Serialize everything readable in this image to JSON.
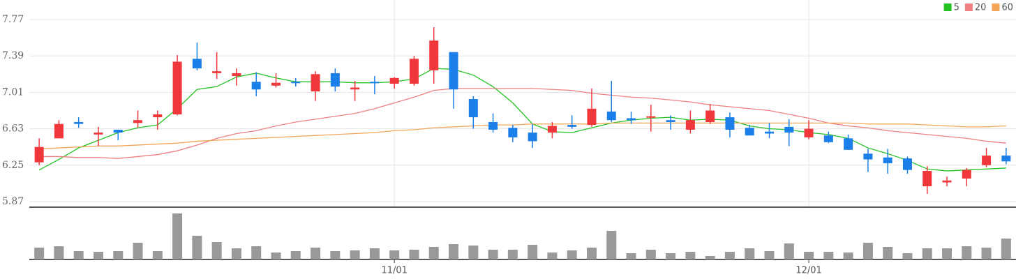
{
  "chart_data": {
    "type": "candlestick",
    "categories": [
      null,
      null,
      null,
      null,
      null,
      null,
      null,
      null,
      null,
      null,
      null,
      null,
      null,
      null,
      null,
      null,
      null,
      null,
      "11/01",
      null,
      null,
      null,
      null,
      null,
      null,
      null,
      null,
      null,
      null,
      null,
      null,
      null,
      null,
      null,
      null,
      null,
      null,
      null,
      null,
      "12/01",
      null,
      null,
      null,
      null,
      null,
      null,
      null,
      null,
      null,
      null
    ],
    "open": [
      6.28,
      6.53,
      6.7,
      6.57,
      6.62,
      6.69,
      6.75,
      6.78,
      7.36,
      7.21,
      7.18,
      7.12,
      7.08,
      7.12,
      7.02,
      7.21,
      7.04,
      7.12,
      7.1,
      7.1,
      7.24,
      7.43,
      6.94,
      6.7,
      6.64,
      6.59,
      6.59,
      6.67,
      6.67,
      6.81,
      6.74,
      6.75,
      6.72,
      6.62,
      6.7,
      6.75,
      6.64,
      6.6,
      6.65,
      6.54,
      6.56,
      6.53,
      6.37,
      6.33,
      6.32,
      6.03,
      6.07,
      6.11,
      6.25,
      6.35
    ],
    "high": [
      6.53,
      6.72,
      6.75,
      6.65,
      6.62,
      6.82,
      6.82,
      7.4,
      7.53,
      7.43,
      7.26,
      7.22,
      7.21,
      7.16,
      7.23,
      7.26,
      7.13,
      7.18,
      7.17,
      7.39,
      7.69,
      7.43,
      6.97,
      6.79,
      6.67,
      6.68,
      6.7,
      6.77,
      7.05,
      7.13,
      6.81,
      6.88,
      6.77,
      6.82,
      6.89,
      6.8,
      6.67,
      6.69,
      6.73,
      6.72,
      6.6,
      6.57,
      6.42,
      6.42,
      6.34,
      6.24,
      6.13,
      6.22,
      6.43,
      6.43
    ],
    "low": [
      6.25,
      6.53,
      6.64,
      6.45,
      6.51,
      6.64,
      6.62,
      6.77,
      7.24,
      7.15,
      7.08,
      6.97,
      7.06,
      7.07,
      6.92,
      7.02,
      6.92,
      6.99,
      7.05,
      7.08,
      7.1,
      6.84,
      6.63,
      6.59,
      6.49,
      6.43,
      6.53,
      6.63,
      6.65,
      6.7,
      6.68,
      6.6,
      6.62,
      6.58,
      6.68,
      6.54,
      6.56,
      6.53,
      6.45,
      6.52,
      6.48,
      6.41,
      6.18,
      6.16,
      6.16,
      5.95,
      6.03,
      6.03,
      6.23,
      6.26
    ],
    "close": [
      6.44,
      6.68,
      6.68,
      6.59,
      6.59,
      6.72,
      6.78,
      7.33,
      7.26,
      7.23,
      7.21,
      7.04,
      7.11,
      7.11,
      7.2,
      7.07,
      7.06,
      7.11,
      7.16,
      7.36,
      7.55,
      7.04,
      6.75,
      6.62,
      6.54,
      6.5,
      6.66,
      6.65,
      6.84,
      6.72,
      6.72,
      6.76,
      6.7,
      6.72,
      6.82,
      6.62,
      6.56,
      6.58,
      6.59,
      6.63,
      6.49,
      6.41,
      6.31,
      6.27,
      6.2,
      6.19,
      6.09,
      6.2,
      6.35,
      6.29
    ],
    "up_color": "#f0373c",
    "down_color": "#1a7fe8",
    "ylim": [
      5.87,
      7.77
    ],
    "yticks": [
      7.77,
      7.39,
      7.01,
      6.63,
      6.25,
      5.87
    ],
    "grid": true,
    "legend": "top-right",
    "series": [
      {
        "name": "5",
        "color": "#22c322",
        "values": [
          6.2,
          6.31,
          6.43,
          6.51,
          6.59,
          6.64,
          6.67,
          6.84,
          7.04,
          7.07,
          7.17,
          7.21,
          7.16,
          7.12,
          7.12,
          7.12,
          7.11,
          7.11,
          7.12,
          7.15,
          7.26,
          7.25,
          7.19,
          7.07,
          6.9,
          6.68,
          6.6,
          6.59,
          6.64,
          6.69,
          6.72,
          6.74,
          6.75,
          6.72,
          6.73,
          6.72,
          6.66,
          6.63,
          6.62,
          6.59,
          6.57,
          6.53,
          6.43,
          6.37,
          6.3,
          6.21,
          6.19,
          6.2,
          6.21,
          6.22
        ]
      },
      {
        "name": "20",
        "color": "#f08080",
        "values": [
          6.34,
          6.34,
          6.33,
          6.33,
          6.32,
          6.34,
          6.36,
          6.4,
          6.46,
          6.53,
          6.58,
          6.61,
          6.66,
          6.7,
          6.73,
          6.76,
          6.79,
          6.84,
          6.9,
          6.96,
          7.03,
          7.05,
          7.05,
          7.05,
          7.05,
          7.05,
          7.04,
          7.03,
          7.0,
          6.98,
          6.96,
          6.95,
          6.93,
          6.91,
          6.88,
          6.86,
          6.84,
          6.82,
          6.78,
          6.74,
          6.69,
          6.66,
          6.64,
          6.61,
          6.59,
          6.57,
          6.55,
          6.53,
          6.5,
          6.48
        ]
      },
      {
        "name": "60",
        "color": "#f5a55a",
        "values": [
          6.42,
          6.43,
          6.44,
          6.45,
          6.45,
          6.46,
          6.47,
          6.48,
          6.5,
          6.51,
          6.52,
          6.53,
          6.54,
          6.55,
          6.56,
          6.57,
          6.58,
          6.59,
          6.61,
          6.62,
          6.64,
          6.65,
          6.66,
          6.67,
          6.67,
          6.68,
          6.68,
          6.68,
          6.68,
          6.69,
          6.69,
          6.69,
          6.69,
          6.69,
          6.69,
          6.69,
          6.69,
          6.69,
          6.69,
          6.69,
          6.69,
          6.69,
          6.68,
          6.68,
          6.68,
          6.67,
          6.66,
          6.65,
          6.65,
          6.66
        ]
      }
    ],
    "volume": {
      "color": "#999999",
      "values": [
        17,
        19,
        12,
        11,
        12,
        24,
        12,
        66,
        34,
        25,
        16,
        19,
        10,
        12,
        17,
        12,
        13,
        16,
        13,
        14,
        18,
        22,
        20,
        14,
        14,
        21,
        10,
        13,
        17,
        41,
        9,
        14,
        9,
        11,
        5,
        11,
        16,
        12,
        23,
        11,
        11,
        10,
        24,
        18,
        9,
        16,
        16,
        19,
        17,
        30
      ]
    }
  }
}
